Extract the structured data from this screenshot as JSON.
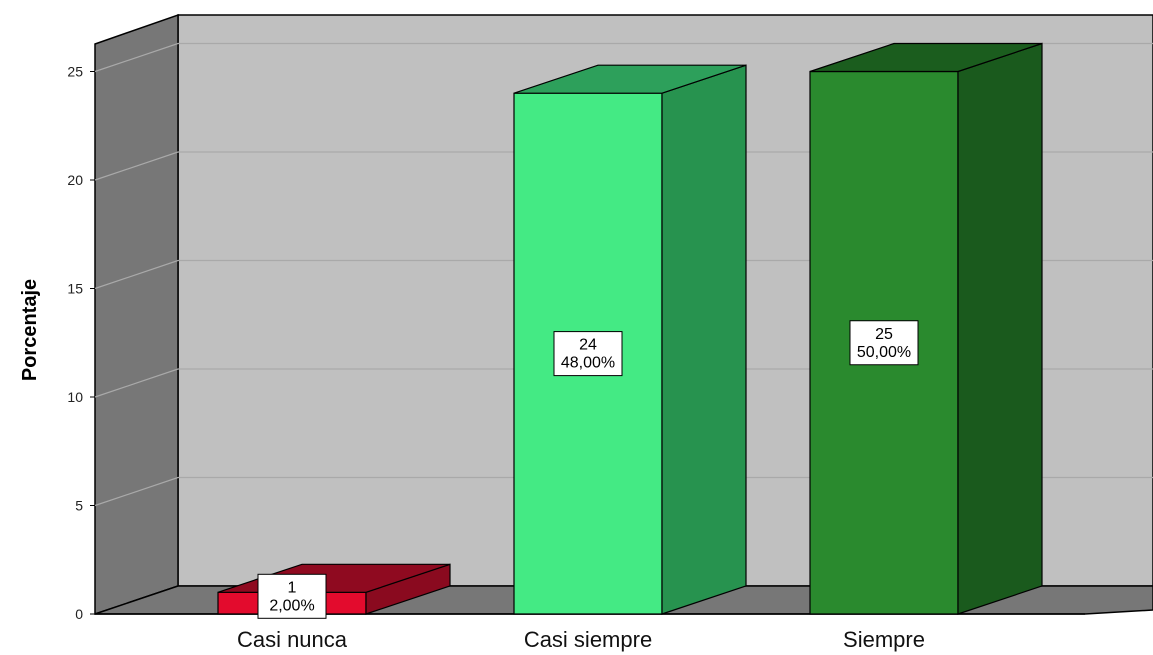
{
  "chart_data": {
    "type": "bar",
    "style": "3d",
    "title": "",
    "xlabel": "",
    "ylabel": "Porcentaje",
    "ylim": [
      0,
      26
    ],
    "yticks": [
      "0",
      "5",
      "10",
      "15",
      "20",
      "25"
    ],
    "grid": true,
    "categories": [
      "Casi nunca",
      "Casi siempre",
      "Siempre"
    ],
    "values": [
      1,
      24,
      25
    ],
    "labels": [
      {
        "count": "1",
        "percent": "2,00%"
      },
      {
        "count": "24",
        "percent": "48,00%"
      },
      {
        "count": "25",
        "percent": "50,00%"
      }
    ],
    "colors": [
      {
        "front": "#e30b2d",
        "side": "#8a0a1f",
        "top": "#8f0a20"
      },
      {
        "front": "#44ea84",
        "side": "#27934f",
        "top": "#2da05b"
      },
      {
        "front": "#2a8a2e",
        "side": "#1a5a1d",
        "top": "#1b5d1e"
      }
    ],
    "wall_color": "#c0c0c0",
    "side_wall_color": "#777777",
    "floor_color": "#777777"
  }
}
